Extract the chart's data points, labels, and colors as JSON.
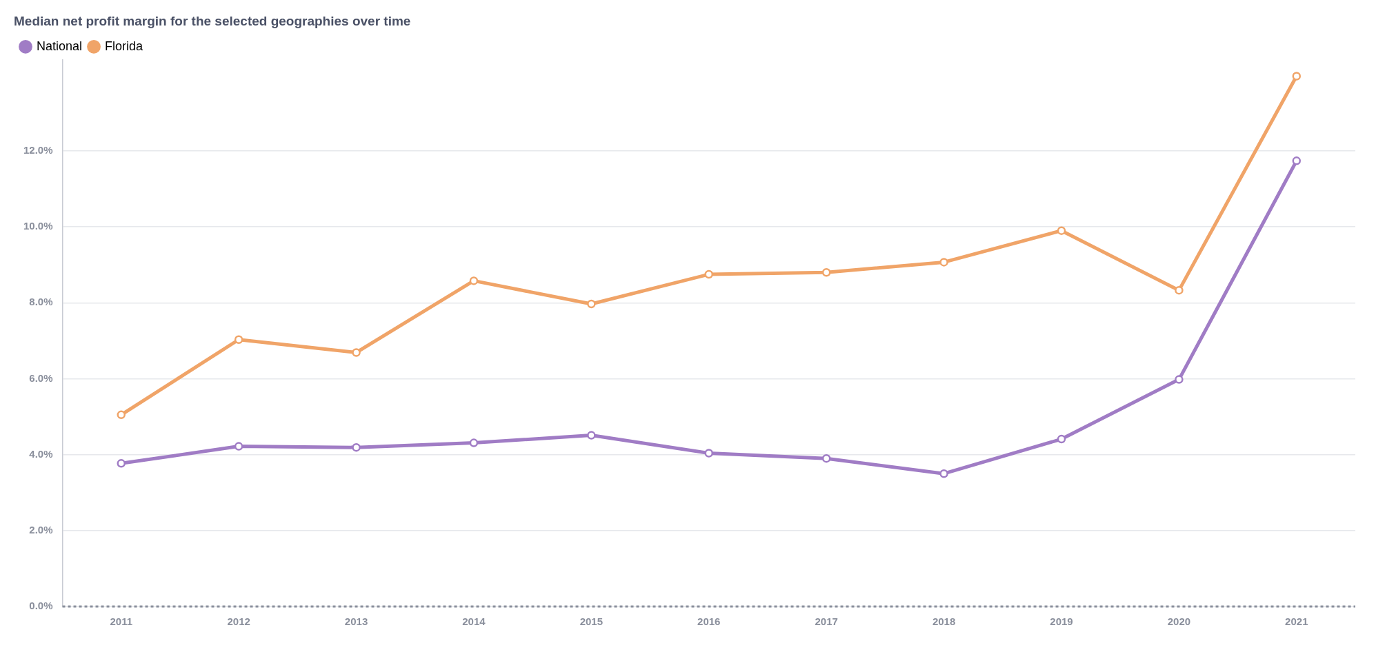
{
  "chart_data": {
    "type": "line",
    "title": "Median net profit margin for the selected geographies over time",
    "categories": [
      "2011",
      "2012",
      "2013",
      "2014",
      "2015",
      "2016",
      "2017",
      "2018",
      "2019",
      "2020",
      "2021"
    ],
    "series": [
      {
        "name": "National",
        "color": "#a07cc5",
        "values": [
          3.77,
          4.22,
          4.19,
          4.31,
          4.51,
          4.04,
          3.9,
          3.5,
          4.41,
          5.98,
          11.74
        ]
      },
      {
        "name": "Florida",
        "color": "#f0a468",
        "values": [
          5.05,
          7.03,
          6.69,
          8.58,
          7.97,
          8.75,
          8.8,
          9.07,
          9.9,
          8.33,
          13.97
        ]
      }
    ],
    "ylim": [
      0,
      14.4
    ],
    "yticks": [
      {
        "value": 0,
        "label": "0.0%"
      },
      {
        "value": 2,
        "label": "2.0%"
      },
      {
        "value": 4,
        "label": "4.0%"
      },
      {
        "value": 6,
        "label": "6.0%"
      },
      {
        "value": 8,
        "label": "8.0%"
      },
      {
        "value": 10,
        "label": "10.0%"
      },
      {
        "value": 12,
        "label": "12.0%"
      }
    ],
    "grid": "y",
    "legend": "top left",
    "marker": "circle",
    "line_style": "solid"
  }
}
